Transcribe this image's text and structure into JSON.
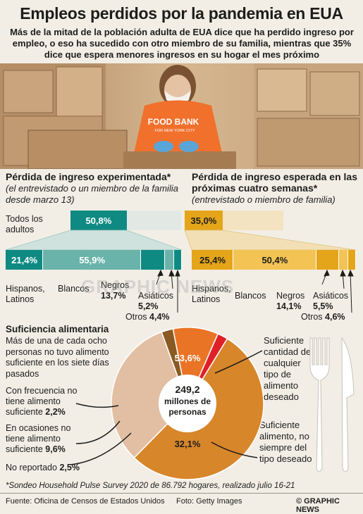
{
  "title": "Empleos perdidos por la pandemia en EUA",
  "subtitle": "Más de la mitad de la población adulta de EUA dice que ha perdido ingreso por empleo, o eso ha sucedido con otro miembro de su familia, mientras que 35% dice que espera menores ingresos en su hogar el mes próximo",
  "photo": {
    "shirt_line1": "FOOD BANK",
    "shirt_line2": "FOR NEW YORK CITY"
  },
  "left_section": {
    "heading": "Pérdida de ingreso experimentada*",
    "note": "(el entrevistado o un miembro de la familia desde marzo 13)"
  },
  "right_section": {
    "heading": "Pérdida de ingreso esperada en las próximas cuatro semanas*",
    "note": "(entrevistado o miembro de familia)"
  },
  "all_adults_label": "Todos los adultos",
  "group_labels": {
    "hispanos": "Hispanos, Latinos",
    "blancos": "Blancos",
    "negros": "Negros",
    "asiaticos": "Asiáticos",
    "otros": "Otros"
  },
  "colors": {
    "experienced_dark": "#0f8a82",
    "experienced_light": "#6ab3ab",
    "expected_dark": "#e4a51a",
    "expected_light": "#f3c354",
    "food_sufficient": "#d8862a",
    "food_sometimes": "#e2bfa3",
    "food_often": "#e01f26",
    "food_occasionally": "#ea7426",
    "food_not_reported": "#8a5a22",
    "background": "#f2eee6"
  },
  "chart_data": [
    {
      "type": "bar",
      "title": "Pérdida de ingreso experimentada*",
      "categories": [
        "Todos los adultos",
        "Hispanos, Latinos",
        "Blancos",
        "Negros",
        "Asiáticos",
        "Otros"
      ],
      "values": [
        50.8,
        21.4,
        55.9,
        13.7,
        5.2,
        4.4
      ],
      "display": [
        "50,8%",
        "21,4%",
        "55,9%",
        "13,7%",
        "5,2%",
        "4,4%"
      ]
    },
    {
      "type": "bar",
      "title": "Pérdida de ingreso esperada en las próximas cuatro semanas*",
      "categories": [
        "Todos los adultos",
        "Hispanos, Latinos",
        "Blancos",
        "Negros",
        "Asiáticos",
        "Otros"
      ],
      "values": [
        35.0,
        25.4,
        50.4,
        14.1,
        5.5,
        4.6
      ],
      "display": [
        "35,0%",
        "25,4%",
        "50,4%",
        "14,1%",
        "5,5%",
        "4,6%"
      ]
    },
    {
      "type": "pie",
      "title": "Suficiencia alimentaria",
      "center_label": "249,2 millones de personas",
      "slices": [
        {
          "label": "Suficiente cantidad de cualquier tipo de alimento deseado",
          "value": 53.6,
          "display": "53,6%"
        },
        {
          "label": "Suficiente alimento, no siempre del tipo deseado",
          "value": 32.1,
          "display": "32,1%"
        },
        {
          "label": "No reportado",
          "value": 2.5,
          "display": "2,5%"
        },
        {
          "label": "En ocasiones no tiene alimento suficiente",
          "value": 9.6,
          "display": "9,6%"
        },
        {
          "label": "Con frecuencia no tiene alimento suficiente",
          "value": 2.2,
          "display": "2,2%"
        }
      ]
    }
  ],
  "food": {
    "heading": "Suficiencia alimentaria",
    "description": "Más de una de cada ocho personas no tuvo alimento suficiente en los siete días pasados",
    "center_number": "249,2",
    "center_text": "millones de personas",
    "often_label": "Con frecuencia no tiene alimento suficiente",
    "often_value": "2,2%",
    "occasionally_label": "En ocasiones no tiene alimento suficiente",
    "occasionally_value": "9,6%",
    "not_reported_label": "No reportado",
    "not_reported_value": "2,5%",
    "sufficient_label": "Suficiente cantidad de cualquier tipo de alimento deseado",
    "sometimes_label": "Suficiente alimento, no siempre del tipo deseado"
  },
  "footnote": "*Sondeo Household Pulse Survey 2020 de 86.792 hogares, realizado julio 16-21",
  "source": "Fuente: Oficina de Censos de Estados Unidos",
  "photo_credit": "Foto: Getty Images",
  "brand": "© GRAPHIC NEWS",
  "watermark": "GRAPHIC NEWS"
}
